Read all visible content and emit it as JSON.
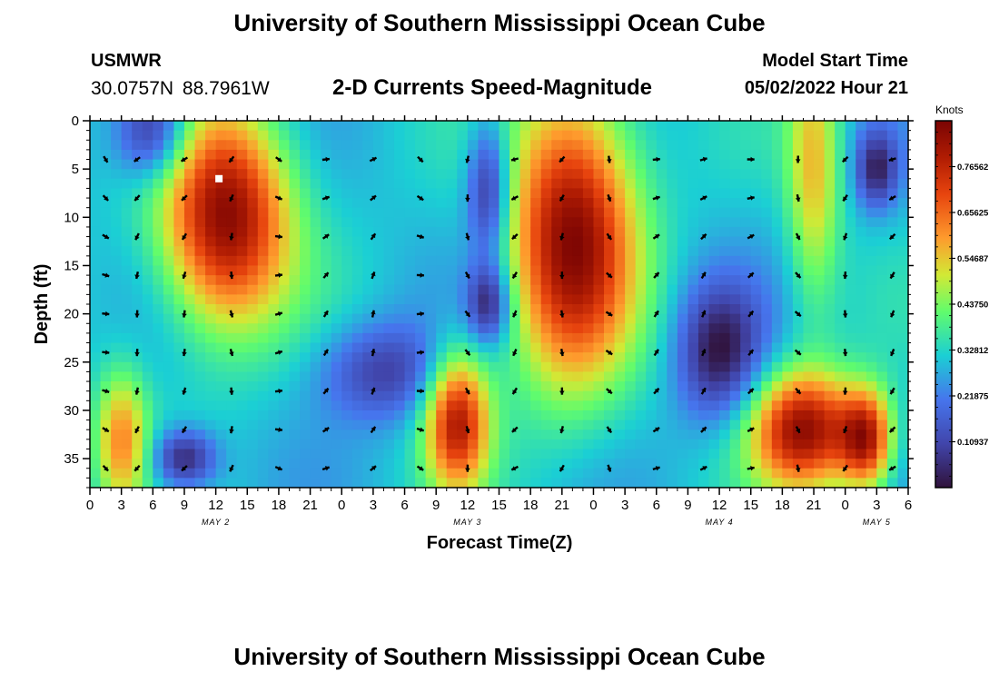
{
  "header": {
    "title": "University of Southern Mississippi Ocean Cube",
    "station": "USMWR",
    "coordinates": "30.0757N  88.7961W",
    "subtitle": "2-D Currents Speed-Magnitude",
    "model_start_label": "Model Start Time",
    "model_start_value": "05/02/2022 Hour 21"
  },
  "footer": {
    "title": "University of Southern Mississippi Ocean Cube"
  },
  "chart_data": {
    "type": "heatmap",
    "title": "2-D Currents Speed-Magnitude",
    "xlabel": "Forecast Time(Z)",
    "ylabel": "Depth (ft)",
    "xlim": [
      0,
      78
    ],
    "ylim": [
      38,
      0
    ],
    "x_ticks": [
      0,
      3,
      6,
      9,
      12,
      15,
      18,
      21,
      24,
      27,
      30,
      33,
      36,
      39,
      42,
      45,
      48,
      51,
      54,
      57,
      60,
      63,
      66,
      69,
      72,
      75,
      78
    ],
    "x_tick_labels": [
      "0",
      "3",
      "6",
      "9",
      "12",
      "15",
      "18",
      "21",
      "0",
      "3",
      "6",
      "9",
      "12",
      "15",
      "18",
      "21",
      "0",
      "3",
      "6",
      "9",
      "12",
      "15",
      "18",
      "21",
      "0",
      "3",
      "6"
    ],
    "y_ticks": [
      0,
      5,
      10,
      15,
      20,
      25,
      30,
      35
    ],
    "y_tick_labels": [
      "0",
      "5",
      "10",
      "15",
      "20",
      "25",
      "30",
      "35"
    ],
    "date_labels": [
      {
        "x": 12,
        "label": "MAY 2"
      },
      {
        "x": 36,
        "label": "MAY 3"
      },
      {
        "x": 60,
        "label": "MAY 4"
      },
      {
        "x": 75,
        "label": "MAY 5"
      }
    ],
    "colorbar": {
      "label": "Knots",
      "min": 0,
      "max": 0.875,
      "tick_values": [
        0.10937,
        0.21875,
        0.32812,
        0.4375,
        0.54687,
        0.65625,
        0.76562
      ],
      "tick_labels": [
        "0.10937",
        "0.21875",
        "0.32812",
        "0.43750",
        "0.54687",
        "0.65625",
        "0.76562"
      ]
    },
    "speed_features": [
      {
        "t": 3,
        "depth": 33,
        "speed": 0.6,
        "t_spread": 2.5,
        "d_spread": 7
      },
      {
        "t": 13,
        "depth": 10,
        "speed": 0.85,
        "t_spread": 6,
        "d_spread": 11
      },
      {
        "t": 6,
        "depth": 1,
        "speed": 0.02,
        "t_spread": 3.5,
        "d_spread": 5
      },
      {
        "t": 9,
        "depth": 35,
        "speed": 0.02,
        "t_spread": 3,
        "d_spread": 3
      },
      {
        "t": 35,
        "depth": 31,
        "speed": 0.78,
        "t_spread": 3,
        "d_spread": 7
      },
      {
        "t": 38,
        "depth": 7,
        "speed": 0.03,
        "t_spread": 2,
        "d_spread": 7
      },
      {
        "t": 38,
        "depth": 19,
        "speed": 0.04,
        "t_spread": 2,
        "d_spread": 4
      },
      {
        "t": 46,
        "depth": 12,
        "speed": 0.85,
        "t_spread": 6,
        "d_spread": 15
      },
      {
        "t": 60,
        "depth": 24,
        "speed": 0.02,
        "t_spread": 4,
        "d_spread": 7
      },
      {
        "t": 68,
        "depth": 32,
        "speed": 0.82,
        "t_spread": 5,
        "d_spread": 6
      },
      {
        "t": 69,
        "depth": 5,
        "speed": 0.55,
        "t_spread": 2.5,
        "d_spread": 14
      },
      {
        "t": 75,
        "depth": 5,
        "speed": 0.05,
        "t_spread": 2,
        "d_spread": 4
      },
      {
        "t": 74,
        "depth": 33,
        "speed": 0.75,
        "t_spread": 2.5,
        "d_spread": 5
      },
      {
        "t": 28,
        "depth": 26,
        "speed": 0.1,
        "t_spread": 6,
        "d_spread": 5
      }
    ],
    "white_marker": {
      "t": 12.3,
      "depth": 6
    },
    "vector_grid": {
      "times": [
        0,
        4.5,
        9,
        13.5,
        18,
        22.5,
        27,
        31.5,
        36,
        40.5,
        45,
        49.5,
        54,
        58.5,
        63,
        67.5,
        72,
        76.5
      ],
      "depths": [
        4,
        8,
        12,
        16,
        20,
        24,
        28,
        32,
        36
      ]
    }
  }
}
